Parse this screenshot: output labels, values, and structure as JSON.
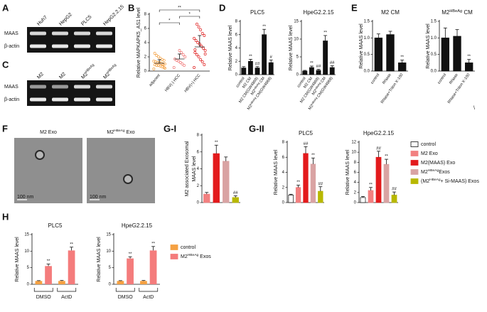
{
  "gels": [
    {
      "panel": "A",
      "lanes": [
        "Huh7",
        "HepG2",
        "PLC5",
        "HepG2.2.15"
      ],
      "rows": [
        "MAAS",
        "β-actin"
      ]
    },
    {
      "panel": "C",
      "lanes": [
        "M2",
        "M2",
        [
          "M2",
          "HBeAg"
        ],
        [
          "M2",
          "HBeAg"
        ]
      ],
      "rows": [
        "MAAS",
        "β-actin"
      ]
    }
  ],
  "em": {
    "panel": "F",
    "labels": [
      "M2 Exo",
      [
        "M2",
        "HBeAg",
        " Exo"
      ]
    ],
    "scale_bars": [
      "100 nm",
      "100 nm"
    ]
  },
  "chart_data": [
    {
      "type": "dot",
      "panel": "B",
      "ylabel": "Relative MAPKAPK5_AS1 level",
      "categories": [
        "adjacent",
        "HBV(-) HCC",
        "HBV(+) HCC"
      ],
      "colors": [
        "#f5a142",
        "#f07a7a",
        "#e01f1f"
      ],
      "values": [
        [
          0.3,
          0.5,
          0.6,
          0.7,
          0.8,
          0.8,
          0.9,
          1.0,
          1.0,
          1.1,
          1.2,
          1.2,
          1.3,
          1.4,
          1.5,
          1.6,
          1.8,
          2.0,
          2.2,
          2.5,
          0.4,
          0.9
        ],
        [
          0.5,
          0.8,
          1.0,
          1.2,
          1.4,
          1.5,
          1.7,
          2.0,
          2.3,
          2.6,
          2.9
        ],
        [
          0.5,
          0.9,
          1.3,
          1.6,
          2.0,
          2.3,
          2.6,
          2.9,
          3.2,
          3.5,
          3.8,
          4.0,
          4.3,
          4.6,
          5.0,
          5.3,
          5.8,
          6.2,
          6.6,
          3.0,
          2.4
        ]
      ],
      "means": [
        1.1,
        1.7,
        3.4
      ],
      "errors": [
        0.5,
        0.7,
        1.6
      ],
      "significance": [
        "*",
        "**",
        "*"
      ],
      "ylim": [
        0,
        8
      ],
      "yticks": [
        0,
        2,
        4,
        6,
        8
      ]
    },
    {
      "type": "bar",
      "panel": "D",
      "title": "PLC5",
      "ylabel": "Relative MAAS level",
      "categories": [
        "control",
        "M2 CM",
        "M2 CM(GW4869)",
        [
          "M2",
          "HBeAg",
          " CM"
        ],
        [
          "M2",
          "HBeAg",
          " CM(GW4869)"
        ]
      ],
      "values": [
        1,
        2,
        1,
        6,
        1.8
      ],
      "errors": [
        0.2,
        0.3,
        0.2,
        0.8,
        0.4
      ],
      "color": "#111111",
      "annotations": [
        null,
        "**",
        "##",
        "**",
        "#"
      ],
      "ylim": [
        0,
        8
      ],
      "yticks": [
        0,
        2,
        4,
        6,
        8
      ]
    },
    {
      "type": "bar",
      "title": "HpeG2.2.15",
      "ylabel": "Relative MAAS level",
      "categories": [
        "control",
        "M2 CM",
        "M2 CM(GW4869)",
        [
          "M2",
          "HBeAg",
          " CM"
        ],
        [
          "M2",
          "HBeAg",
          " CM(GW4869)"
        ]
      ],
      "values": [
        1,
        2,
        1.2,
        9.5,
        2
      ],
      "errors": [
        0.2,
        0.4,
        0.3,
        1.5,
        0.5
      ],
      "color": "#111111",
      "annotations": [
        null,
        "**",
        "##",
        "**",
        "##"
      ],
      "ylim": [
        0,
        15
      ],
      "yticks": [
        0,
        5,
        10,
        15
      ]
    },
    {
      "type": "bar",
      "panel": "E",
      "title": "M2 CM",
      "ylabel": "Relative MAAS level",
      "categories": [
        "control",
        "RNase",
        "RNase+Triton X-100"
      ],
      "values": [
        1,
        1.1,
        0.25
      ],
      "errors": [
        0.12,
        0.1,
        0.08
      ],
      "color": "#111111",
      "annotations": [
        null,
        null,
        "**"
      ],
      "ylim": [
        0,
        1.5
      ],
      "yticks": [
        {
          "value": 0,
          "label": "0.0"
        },
        0.5,
        {
          "value": 1,
          "label": "1.0"
        },
        1.5
      ]
    },
    {
      "type": "bar",
      "title": [
        "M2",
        "HBeAg",
        " CM"
      ],
      "ylabel": "Relative MAAS level",
      "categories": [
        "control",
        "RNase",
        "RNase+Triton X-100"
      ],
      "values": [
        1,
        1.05,
        0.25
      ],
      "errors": [
        0.3,
        0.2,
        0.1
      ],
      "color": "#111111",
      "annotations": [
        null,
        null,
        "**"
      ],
      "note": "\\",
      "ylim": [
        0,
        1.5
      ],
      "yticks": [
        {
          "value": 0,
          "label": "0.0"
        },
        0.5,
        {
          "value": 1,
          "label": "1.0"
        },
        1.5
      ]
    },
    {
      "type": "bar",
      "panel": "G-I",
      "ylabel_lines": [
        "M2 associated Exosomal",
        "MAAS level"
      ],
      "values": [
        1,
        5.8,
        4.9,
        0.6
      ],
      "errors": [
        0.2,
        1.0,
        0.5,
        0.2
      ],
      "colors": [
        "#f28080",
        "#e31a1c",
        "#d9a3a3",
        "#b8b800"
      ],
      "annotations": [
        null,
        "**",
        null,
        "##"
      ],
      "ylim": [
        0,
        8
      ],
      "yticks": [
        0,
        2,
        4,
        6,
        8
      ]
    },
    {
      "type": "bar",
      "panel": "G-II",
      "title": "PLC5",
      "ylabel": "Relative MAAS level",
      "values": [
        1,
        2,
        6.5,
        5.1,
        1.5
      ],
      "errors": [
        0.1,
        0.3,
        0.9,
        0.8,
        0.6
      ],
      "colors": [
        "#ffffff",
        "#f28080",
        "#e31a1c",
        "#d9a3a3",
        "#b8b800"
      ],
      "annotations": [
        null,
        "**",
        "##",
        "**",
        "##"
      ],
      "ylim": [
        0,
        8
      ],
      "yticks": [
        0,
        2,
        4,
        6,
        8
      ]
    },
    {
      "type": "bar",
      "title": "HpeG2.2.15",
      "ylabel": "Relative MAAS level",
      "values": [
        1,
        2.4,
        9,
        7.6,
        1.5
      ],
      "errors": [
        0.2,
        0.6,
        1.2,
        1.0,
        0.6
      ],
      "colors": [
        "#ffffff",
        "#f28080",
        "#e31a1c",
        "#d9a3a3",
        "#b8b800"
      ],
      "annotations": [
        null,
        "**",
        "##",
        "**",
        "##"
      ],
      "legend": [
        {
          "name": "control",
          "color": "#ffffff"
        },
        {
          "name": "M2 Exo",
          "color": "#f28080"
        },
        {
          "name": "M2(MAAS) Exo",
          "color": "#e31a1c"
        },
        {
          "name": [
            "M2",
            "HBeAg",
            "Exos"
          ],
          "color": "#d9a3a3"
        },
        {
          "name": [
            "(M2",
            "HBeAg",
            "+ Si-MAAS) Exos"
          ],
          "color": "#b8b800"
        }
      ],
      "ylim": [
        0,
        12
      ],
      "yticks": [
        0,
        2,
        4,
        6,
        8,
        10,
        12
      ]
    },
    {
      "type": "grouped_bar",
      "panel": "H",
      "title": "PLC5",
      "ylabel": "Relative MAAS level",
      "categories": [
        "DMSO",
        "ActD"
      ],
      "series": [
        {
          "name": "control",
          "color": "#f5a142",
          "values": [
            1,
            1
          ],
          "errors": [
            0.1,
            0.15
          ],
          "annotations": [
            null,
            null
          ]
        },
        {
          "name": [
            "M2",
            "HBeAg",
            " Exos"
          ],
          "color": "#f47c7c",
          "values": [
            5.5,
            10.2
          ],
          "errors": [
            0.6,
            1.0
          ],
          "annotations": [
            "**",
            "**"
          ]
        }
      ],
      "ylim": [
        0,
        15
      ],
      "yticks": [
        0,
        5,
        10,
        15
      ]
    },
    {
      "type": "grouped_bar",
      "title": "HpeG2.2.15",
      "ylabel": "Relative MAAS level",
      "categories": [
        "DMSO",
        "ActD"
      ],
      "series": [
        {
          "name": "control",
          "color": "#f5a142",
          "values": [
            1,
            1
          ],
          "errors": [
            0.1,
            0.15
          ],
          "annotations": [
            null,
            null
          ]
        },
        {
          "name": [
            "M2",
            "HBeAg",
            " Exos"
          ],
          "color": "#f47c7c",
          "values": [
            7.8,
            10.2
          ],
          "errors": [
            0.5,
            1.2
          ],
          "annotations": [
            "**",
            "**"
          ]
        }
      ],
      "legend_shown": true,
      "ylim": [
        0,
        15
      ],
      "yticks": [
        0,
        5,
        10,
        15
      ]
    }
  ]
}
